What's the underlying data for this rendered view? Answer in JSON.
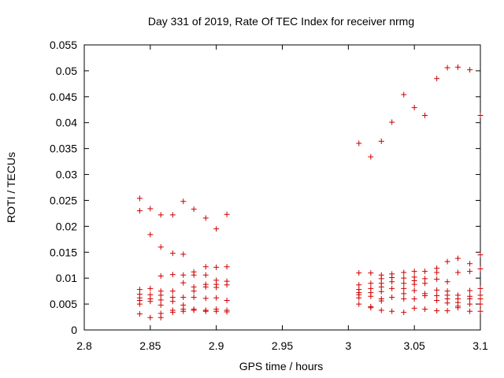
{
  "chart_data": {
    "type": "scatter",
    "title": "Day 331 of 2019, Rate Of TEC Index for receiver nrmg",
    "xlabel": "GPS time / hours",
    "ylabel": "ROTI / TECUs",
    "xlim": [
      2.8,
      3.1
    ],
    "ylim": [
      0,
      0.055
    ],
    "xticks": [
      2.8,
      2.85,
      2.9,
      2.95,
      3.0,
      3.05,
      3.1
    ],
    "xtick_labels": [
      "2.8",
      "2.85",
      "2.9",
      "2.95",
      "3",
      "3.05",
      "3.1"
    ],
    "yticks": [
      0,
      0.005,
      0.01,
      0.015,
      0.02,
      0.025,
      0.03,
      0.035,
      0.04,
      0.045,
      0.05,
      0.055
    ],
    "ytick_labels": [
      "0",
      "0.005",
      "0.01",
      "0.015",
      "0.02",
      "0.025",
      "0.03",
      "0.035",
      "0.04",
      "0.045",
      "0.05",
      "0.055"
    ],
    "grid": false,
    "marker": "+",
    "marker_color": "#cc0000",
    "series": [
      {
        "name": "ROTI",
        "points": [
          [
            2.842,
            0.0254
          ],
          [
            2.842,
            0.023
          ],
          [
            2.842,
            0.0078
          ],
          [
            2.842,
            0.0069
          ],
          [
            2.842,
            0.0062
          ],
          [
            2.842,
            0.0057
          ],
          [
            2.842,
            0.005
          ],
          [
            2.842,
            0.0031
          ],
          [
            2.85,
            0.0234
          ],
          [
            2.85,
            0.0184
          ],
          [
            2.85,
            0.008
          ],
          [
            2.85,
            0.0068
          ],
          [
            2.85,
            0.006
          ],
          [
            2.85,
            0.0055
          ],
          [
            2.85,
            0.0024
          ],
          [
            2.858,
            0.0222
          ],
          [
            2.858,
            0.016
          ],
          [
            2.858,
            0.0104
          ],
          [
            2.858,
            0.0075
          ],
          [
            2.858,
            0.0067
          ],
          [
            2.858,
            0.0058
          ],
          [
            2.858,
            0.0048
          ],
          [
            2.858,
            0.0032
          ],
          [
            2.858,
            0.0024
          ],
          [
            2.867,
            0.0222
          ],
          [
            2.867,
            0.0148
          ],
          [
            2.867,
            0.0107
          ],
          [
            2.867,
            0.0075
          ],
          [
            2.867,
            0.0063
          ],
          [
            2.867,
            0.0055
          ],
          [
            2.867,
            0.0038
          ],
          [
            2.867,
            0.0034
          ],
          [
            2.875,
            0.0248
          ],
          [
            2.875,
            0.0146
          ],
          [
            2.875,
            0.0106
          ],
          [
            2.875,
            0.0091
          ],
          [
            2.875,
            0.0063
          ],
          [
            2.875,
            0.0048
          ],
          [
            2.875,
            0.004
          ],
          [
            2.875,
            0.0036
          ],
          [
            2.883,
            0.0233
          ],
          [
            2.883,
            0.0112
          ],
          [
            2.883,
            0.0106
          ],
          [
            2.883,
            0.0083
          ],
          [
            2.883,
            0.0075
          ],
          [
            2.883,
            0.0063
          ],
          [
            2.883,
            0.004
          ],
          [
            2.883,
            0.0038
          ],
          [
            2.892,
            0.0216
          ],
          [
            2.892,
            0.0122
          ],
          [
            2.892,
            0.0106
          ],
          [
            2.892,
            0.0088
          ],
          [
            2.892,
            0.0083
          ],
          [
            2.892,
            0.0061
          ],
          [
            2.892,
            0.0038
          ],
          [
            2.892,
            0.0036
          ],
          [
            2.9,
            0.0195
          ],
          [
            2.9,
            0.0121
          ],
          [
            2.9,
            0.0096
          ],
          [
            2.9,
            0.0088
          ],
          [
            2.9,
            0.0082
          ],
          [
            2.9,
            0.0062
          ],
          [
            2.9,
            0.004
          ],
          [
            2.9,
            0.0036
          ],
          [
            2.908,
            0.0223
          ],
          [
            2.908,
            0.0122
          ],
          [
            2.908,
            0.0094
          ],
          [
            2.908,
            0.0087
          ],
          [
            2.908,
            0.0057
          ],
          [
            2.908,
            0.0038
          ],
          [
            2.908,
            0.0035
          ],
          [
            3.008,
            0.036
          ],
          [
            3.008,
            0.011
          ],
          [
            3.008,
            0.0087
          ],
          [
            3.008,
            0.0078
          ],
          [
            3.008,
            0.0072
          ],
          [
            3.008,
            0.0068
          ],
          [
            3.008,
            0.0062
          ],
          [
            3.008,
            0.005
          ],
          [
            3.017,
            0.0334
          ],
          [
            3.017,
            0.011
          ],
          [
            3.017,
            0.009
          ],
          [
            3.017,
            0.008
          ],
          [
            3.017,
            0.0072
          ],
          [
            3.017,
            0.0065
          ],
          [
            3.017,
            0.0045
          ],
          [
            3.017,
            0.0043
          ],
          [
            3.025,
            0.0364
          ],
          [
            3.025,
            0.0106
          ],
          [
            3.025,
            0.0099
          ],
          [
            3.025,
            0.009
          ],
          [
            3.025,
            0.0083
          ],
          [
            3.025,
            0.0074
          ],
          [
            3.025,
            0.006
          ],
          [
            3.025,
            0.0056
          ],
          [
            3.025,
            0.0038
          ],
          [
            3.033,
            0.0401
          ],
          [
            3.033,
            0.0108
          ],
          [
            3.033,
            0.0101
          ],
          [
            3.033,
            0.0093
          ],
          [
            3.033,
            0.008
          ],
          [
            3.033,
            0.0063
          ],
          [
            3.033,
            0.0036
          ],
          [
            3.042,
            0.0454
          ],
          [
            3.042,
            0.0111
          ],
          [
            3.042,
            0.01
          ],
          [
            3.042,
            0.009
          ],
          [
            3.042,
            0.008
          ],
          [
            3.042,
            0.007
          ],
          [
            3.042,
            0.006
          ],
          [
            3.042,
            0.0034
          ],
          [
            3.05,
            0.0429
          ],
          [
            3.05,
            0.0113
          ],
          [
            3.05,
            0.0102
          ],
          [
            3.05,
            0.0095
          ],
          [
            3.05,
            0.0088
          ],
          [
            3.05,
            0.0076
          ],
          [
            3.05,
            0.006
          ],
          [
            3.05,
            0.0042
          ],
          [
            3.058,
            0.0414
          ],
          [
            3.058,
            0.0113
          ],
          [
            3.058,
            0.0099
          ],
          [
            3.058,
            0.009
          ],
          [
            3.058,
            0.007
          ],
          [
            3.058,
            0.0066
          ],
          [
            3.058,
            0.004
          ],
          [
            3.067,
            0.0485
          ],
          [
            3.067,
            0.0119
          ],
          [
            3.067,
            0.0111
          ],
          [
            3.067,
            0.0098
          ],
          [
            3.067,
            0.0077
          ],
          [
            3.067,
            0.0066
          ],
          [
            3.067,
            0.0057
          ],
          [
            3.067,
            0.0037
          ],
          [
            3.075,
            0.0506
          ],
          [
            3.075,
            0.0132
          ],
          [
            3.075,
            0.0093
          ],
          [
            3.075,
            0.0075
          ],
          [
            3.075,
            0.0067
          ],
          [
            3.075,
            0.006
          ],
          [
            3.075,
            0.0052
          ],
          [
            3.075,
            0.0037
          ],
          [
            3.083,
            0.0507
          ],
          [
            3.083,
            0.0138
          ],
          [
            3.083,
            0.0111
          ],
          [
            3.083,
            0.0067
          ],
          [
            3.083,
            0.006
          ],
          [
            3.083,
            0.0053
          ],
          [
            3.083,
            0.0046
          ],
          [
            3.083,
            0.0043
          ],
          [
            3.092,
            0.0502
          ],
          [
            3.092,
            0.0128
          ],
          [
            3.092,
            0.0113
          ],
          [
            3.092,
            0.0076
          ],
          [
            3.092,
            0.0065
          ],
          [
            3.092,
            0.006
          ],
          [
            3.092,
            0.005
          ],
          [
            3.092,
            0.0036
          ],
          [
            3.1,
            0.0414
          ],
          [
            3.1,
            0.0145
          ],
          [
            3.1,
            0.0118
          ],
          [
            3.1,
            0.008
          ],
          [
            3.1,
            0.0067
          ],
          [
            3.1,
            0.006
          ],
          [
            3.1,
            0.005
          ],
          [
            3.1,
            0.0036
          ]
        ]
      }
    ]
  }
}
